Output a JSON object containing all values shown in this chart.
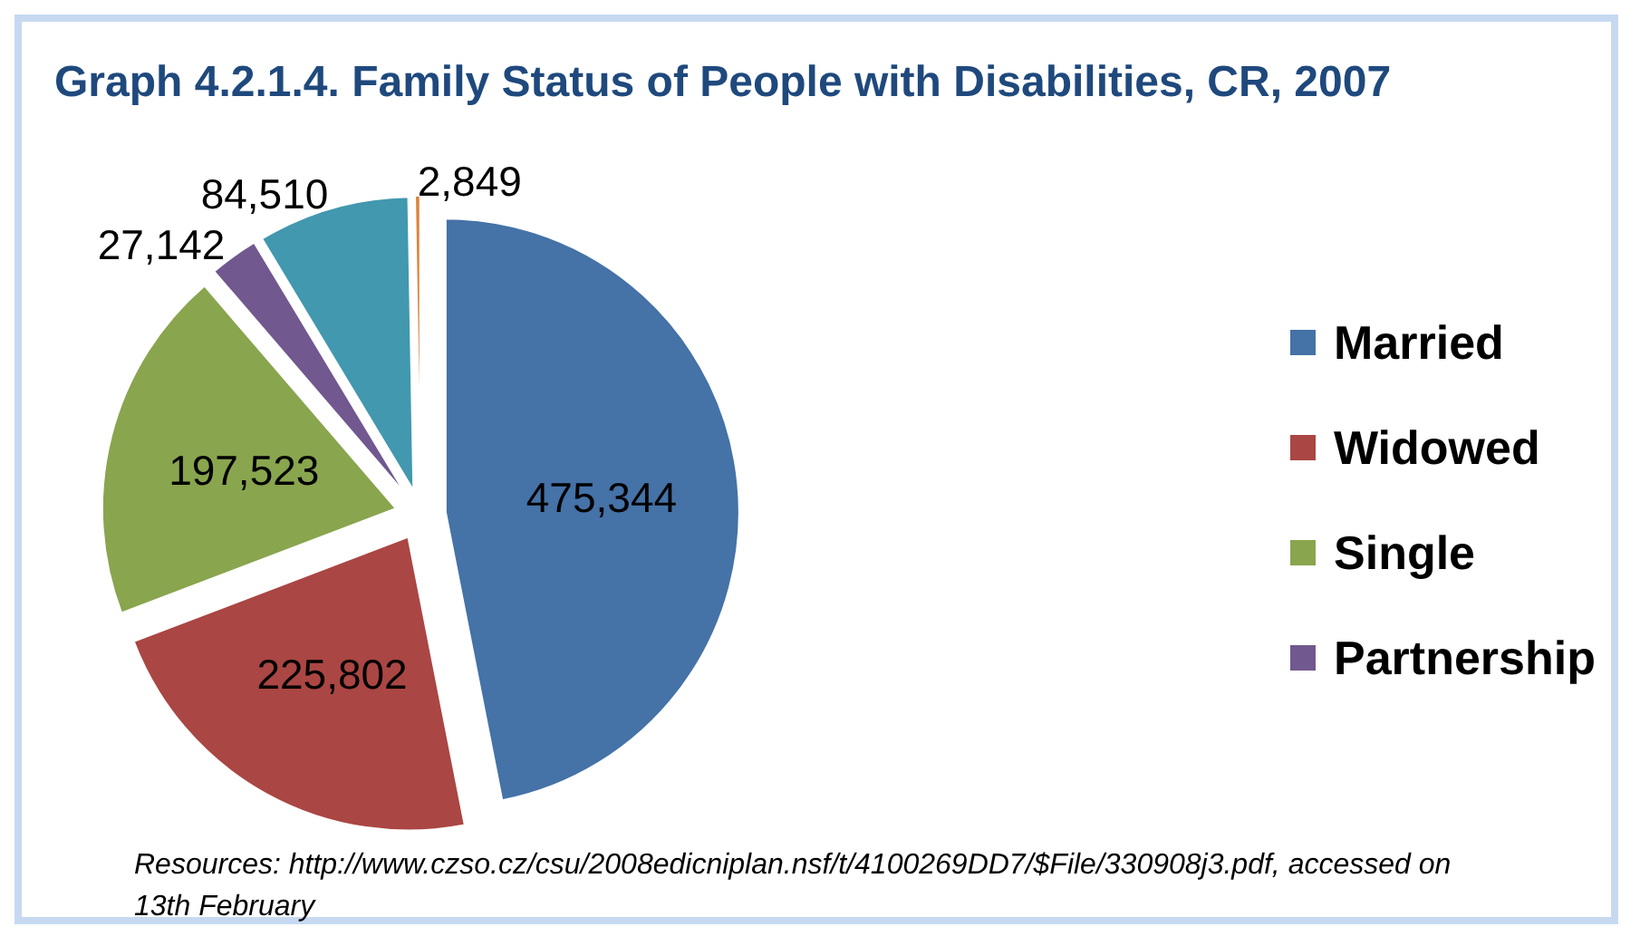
{
  "chart_data": {
    "type": "pie",
    "title": "Graph 4.2.1.4. Family Status of People with Disabilities, CR, 2007",
    "categories": [
      "Married",
      "Widowed",
      "Single",
      "Partnership",
      null,
      null
    ],
    "values": [
      475344,
      225802,
      197523,
      27142,
      84510,
      2849
    ],
    "colors": [
      "#4572a7",
      "#aa4643",
      "#89a54e",
      "#71588f",
      "#4198af",
      "#db843d"
    ],
    "value_labels": [
      "475,344",
      "225,802",
      "197,523",
      "27,142",
      "84,510",
      "2,849"
    ],
    "legend": "right",
    "annotations": [
      "Resources: http://www.czso.cz/csu/2008edicniplan.nsf/t/4100269DD7/$File/330908j3.pdf, accessed on 13th February"
    ]
  }
}
